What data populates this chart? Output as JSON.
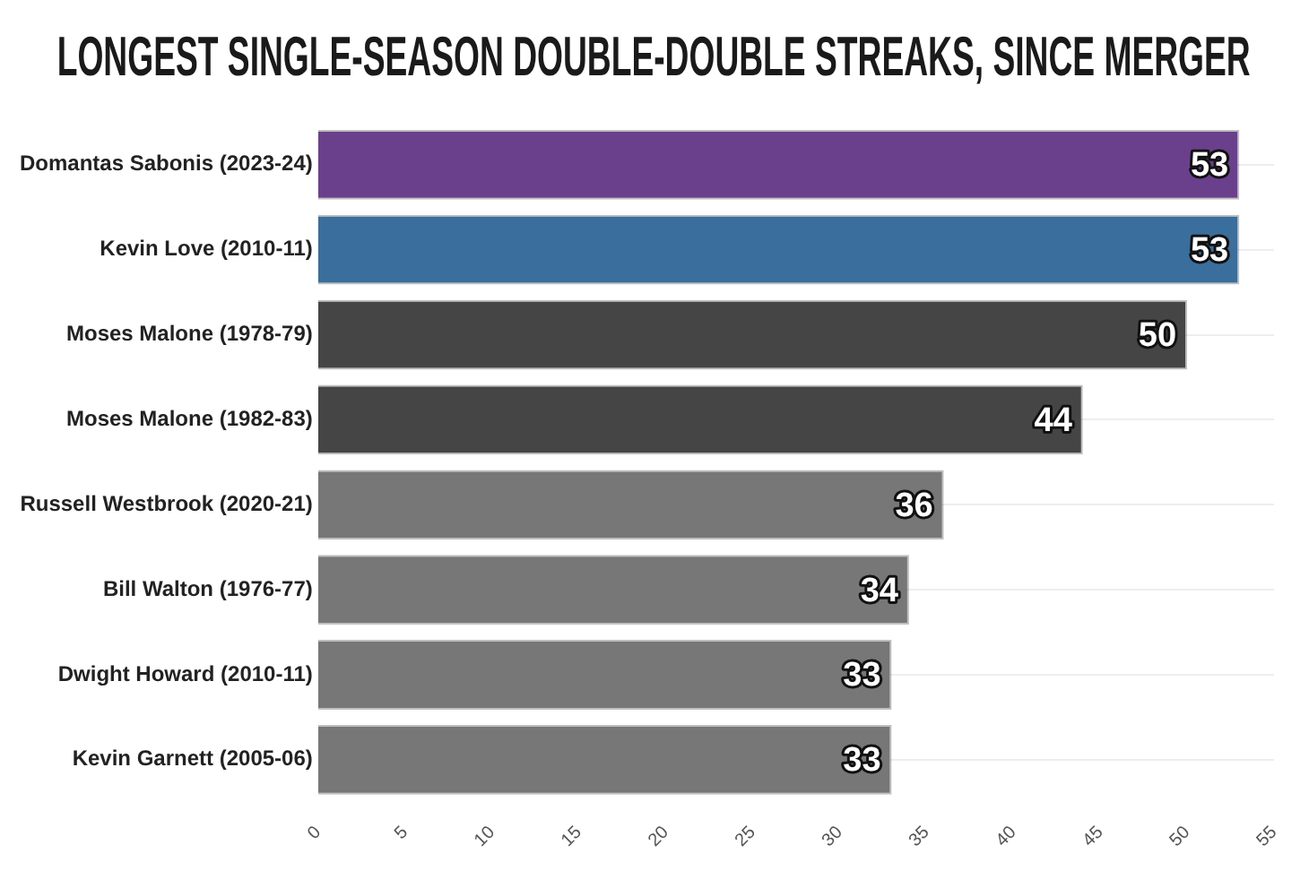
{
  "chart_data": {
    "type": "bar",
    "orientation": "horizontal",
    "title": "LONGEST SINGLE-SEASON DOUBLE-DOUBLE STREAKS, SINCE MERGER",
    "categories": [
      "Domantas Sabonis (2023-24)",
      "Kevin Love (2010-11)",
      "Moses Malone (1978-79)",
      "Moses Malone (1982-83)",
      "Russell Westbrook (2020-21)",
      "Bill Walton (1976-77)",
      "Dwight Howard (2010-11)",
      "Kevin Garnett (2005-06)"
    ],
    "values": [
      53,
      53,
      50,
      44,
      36,
      34,
      33,
      33
    ],
    "colors": [
      "#6a408c",
      "#3a6e9c",
      "#454545",
      "#454545",
      "#777777",
      "#777777",
      "#777777",
      "#777777"
    ],
    "xlim": [
      0,
      55
    ],
    "xticks": [
      0,
      5,
      10,
      15,
      20,
      25,
      30,
      35,
      40,
      45,
      50,
      55
    ],
    "grid": "y",
    "legend": false,
    "data_labels": true
  }
}
